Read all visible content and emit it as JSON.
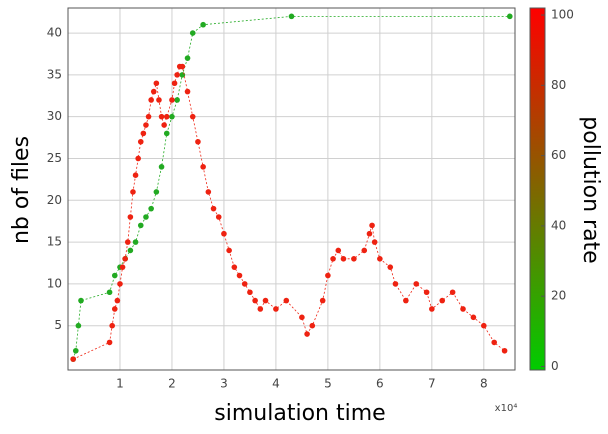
{
  "chart_data": {
    "type": "scatter",
    "x_label": "simulation time",
    "y_label": "nb of files",
    "x_multiplier": "x10⁴",
    "xlim": [
      0,
      8.6
    ],
    "xticks": [
      1,
      2,
      3,
      4,
      5,
      6,
      7,
      8
    ],
    "ylim": [
      -0.3,
      43
    ],
    "yticks": [
      5,
      10,
      15,
      20,
      25,
      30,
      35,
      40
    ],
    "grid": true,
    "series": [
      {
        "color": "#22aa22",
        "x": [
          0.1,
          0.15,
          0.2,
          0.25,
          0.8,
          0.9,
          1.0,
          1.1,
          1.2,
          1.3,
          1.4,
          1.5,
          1.6,
          1.7,
          1.8,
          1.9,
          2.0,
          2.1,
          2.2,
          2.3,
          2.4,
          2.6,
          4.3,
          8.5
        ],
        "values": [
          1,
          2,
          5,
          8,
          9,
          11,
          12,
          13,
          14,
          15,
          17,
          18,
          19,
          21,
          24,
          28,
          30,
          32,
          35,
          37,
          40,
          41,
          42,
          42
        ]
      },
      {
        "color": "#ee2211",
        "x": [
          0.1,
          0.8,
          0.85,
          0.9,
          0.95,
          1.0,
          1.05,
          1.1,
          1.15,
          1.2,
          1.25,
          1.3,
          1.35,
          1.4,
          1.45,
          1.5,
          1.55,
          1.6,
          1.65,
          1.7,
          1.75,
          1.8,
          1.85,
          1.9,
          2.0,
          2.05,
          2.1,
          2.15,
          2.2,
          2.3,
          2.4,
          2.5,
          2.6,
          2.7,
          2.8,
          2.9,
          3.0,
          3.1,
          3.2,
          3.3,
          3.4,
          3.5,
          3.6,
          3.7,
          3.8,
          4.0,
          4.2,
          4.5,
          4.6,
          4.7,
          4.9,
          5.0,
          5.1,
          5.2,
          5.3,
          5.5,
          5.7,
          5.8,
          5.85,
          5.9,
          6.0,
          6.2,
          6.3,
          6.5,
          6.7,
          6.9,
          7.0,
          7.2,
          7.4,
          7.6,
          7.8,
          8.0,
          8.2,
          8.4
        ],
        "values": [
          1,
          3,
          5,
          7,
          8,
          10,
          12,
          13,
          15,
          18,
          21,
          23,
          25,
          27,
          28,
          29,
          30,
          32,
          33,
          34,
          32,
          30,
          29,
          30,
          32,
          34,
          35,
          36,
          36,
          33,
          30,
          27,
          24,
          21,
          19,
          18,
          16,
          14,
          12,
          11,
          10,
          9,
          8,
          7,
          8,
          7,
          8,
          6,
          4,
          5,
          8,
          11,
          13,
          14,
          13,
          13,
          14,
          16,
          17,
          15,
          13,
          12,
          10,
          8,
          10,
          9,
          7,
          8,
          9,
          7,
          6,
          5,
          3,
          2
        ]
      }
    ],
    "colorbar": {
      "label": "pollution rate",
      "lim": [
        -1,
        102
      ],
      "ticks": [
        0,
        20,
        40,
        60,
        80,
        100
      ],
      "colors": [
        "#00cc00",
        "#ff0000"
      ]
    }
  }
}
